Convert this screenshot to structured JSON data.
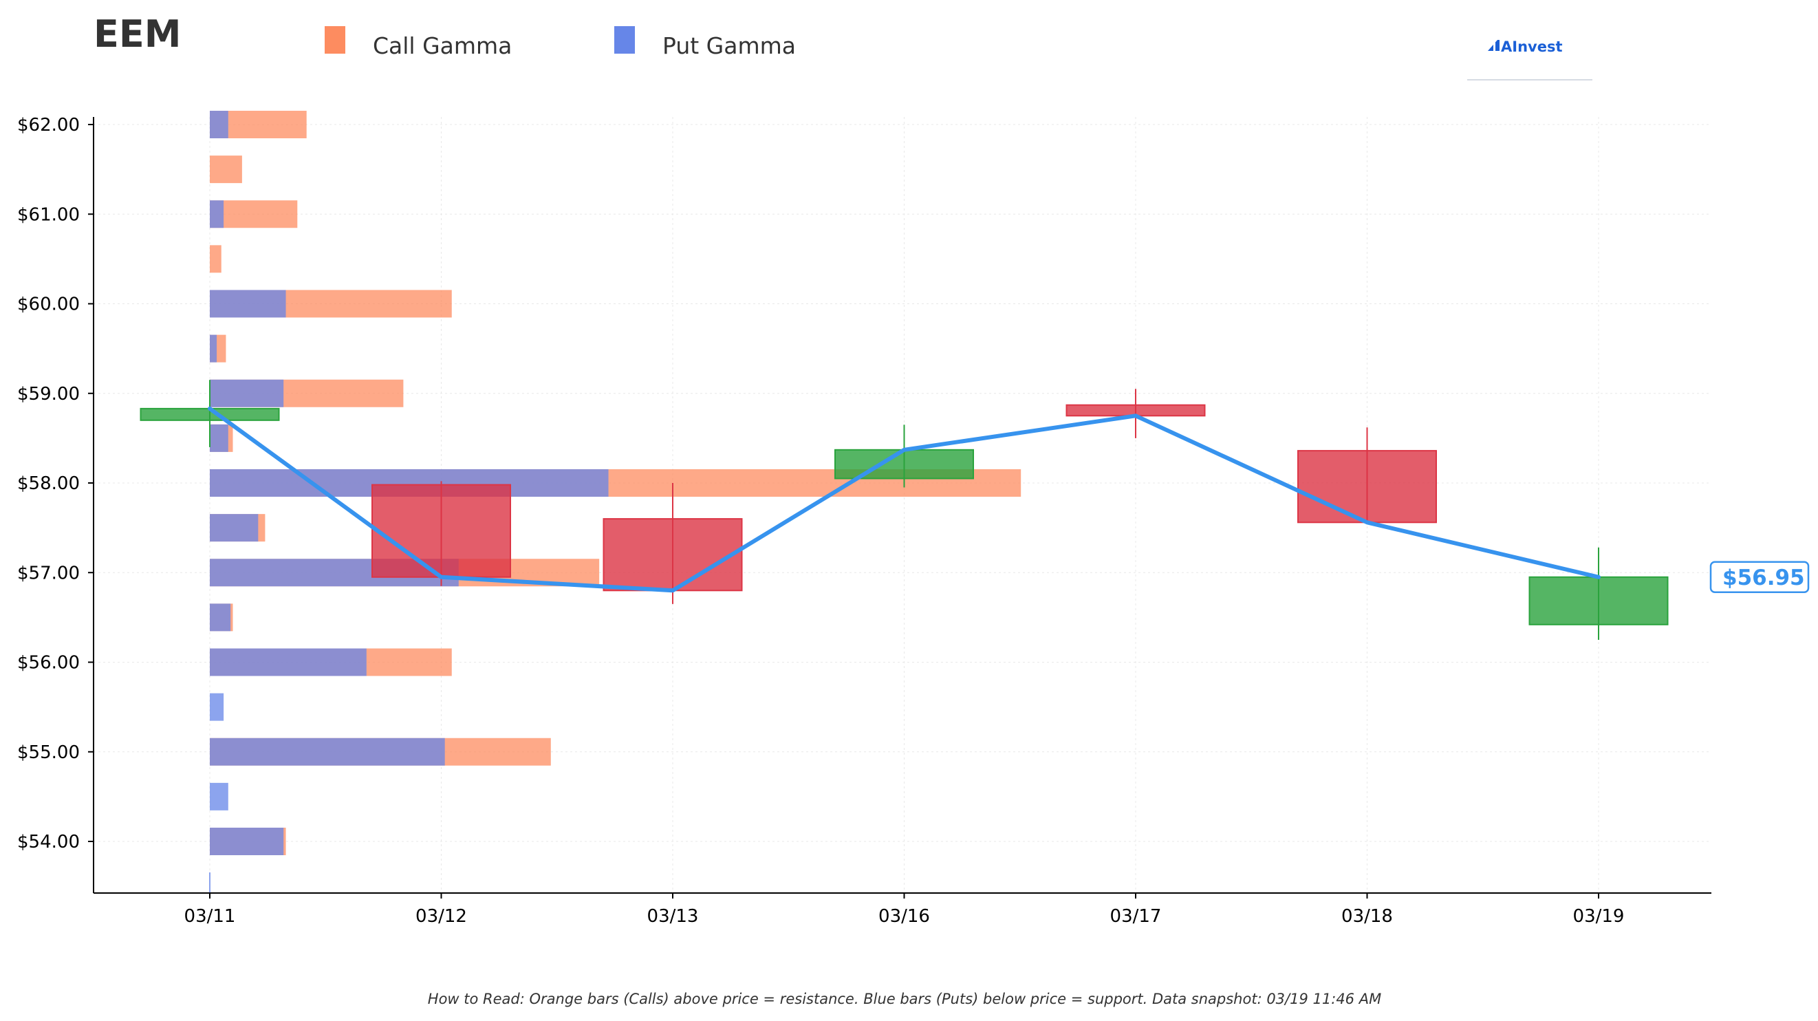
{
  "header": {
    "ticker": "EEM",
    "legend": [
      {
        "label": "Call Gamma",
        "color": "#fd8c60"
      },
      {
        "label": "Put Gamma",
        "color": "#6686e8"
      }
    ],
    "logo_text": "AInvest",
    "logo_color": "#1a5fd6"
  },
  "footnote": "How to Read: Orange bars (Calls) above price = resistance. Blue bars (Puts) below price = support. Data snapshot: 03/19 11:46 AM",
  "colors": {
    "call": "#fd8c60",
    "put": "#6686e8",
    "up": "#2aa33d",
    "down": "#dc3545",
    "line": "#3793ee",
    "grid": "#e8e8e8",
    "axis": "#000000"
  },
  "chart_data": {
    "type": "candlestick",
    "title": "EEM",
    "dates": [
      "03/11",
      "03/12",
      "03/13",
      "03/16",
      "03/17",
      "03/18",
      "03/19"
    ],
    "y_ticks": [
      "$54.00",
      "$55.00",
      "$56.00",
      "$57.00",
      "$58.00",
      "$59.00",
      "$60.00",
      "$61.00",
      "$62.00"
    ],
    "ylim": [
      53.4,
      62.1
    ],
    "grid": true,
    "legend_position": "top",
    "candles": [
      {
        "date": "03/11",
        "open": 58.7,
        "high": 59.15,
        "low": 58.4,
        "close": 58.83
      },
      {
        "date": "03/12",
        "open": 57.98,
        "high": 58.02,
        "low": 56.85,
        "close": 56.95
      },
      {
        "date": "03/13",
        "open": 57.6,
        "high": 58.0,
        "low": 56.65,
        "close": 56.8
      },
      {
        "date": "03/16",
        "open": 58.05,
        "high": 58.65,
        "low": 57.95,
        "close": 58.37
      },
      {
        "date": "03/17",
        "open": 58.87,
        "high": 59.05,
        "low": 58.5,
        "close": 58.75
      },
      {
        "date": "03/18",
        "open": 58.36,
        "high": 58.62,
        "low": 57.55,
        "close": 57.56
      },
      {
        "date": "03/19",
        "open": 56.42,
        "high": 57.28,
        "low": 56.25,
        "close": 56.95
      }
    ],
    "close_line": [
      58.83,
      56.95,
      56.8,
      58.37,
      58.75,
      57.56,
      56.95
    ],
    "current_price": "$56.95",
    "gamma_strikes": [
      62.0,
      61.5,
      61.0,
      60.5,
      60.0,
      59.5,
      59.0,
      58.5,
      58.0,
      57.5,
      57.0,
      56.5,
      56.0,
      55.5,
      55.0,
      54.5,
      54.0
    ],
    "call_gamma": [
      0.42,
      0.14,
      0.38,
      0.05,
      1.05,
      0.07,
      0.84,
      0.1,
      3.52,
      0.24,
      1.69,
      0.1,
      1.05,
      0.0,
      1.48,
      0.0,
      0.33
    ],
    "put_gamma": [
      0.08,
      0.0,
      0.06,
      0.0,
      0.33,
      0.03,
      0.32,
      0.08,
      1.73,
      0.21,
      1.08,
      0.09,
      0.68,
      0.06,
      1.02,
      0.08,
      0.32
    ]
  }
}
